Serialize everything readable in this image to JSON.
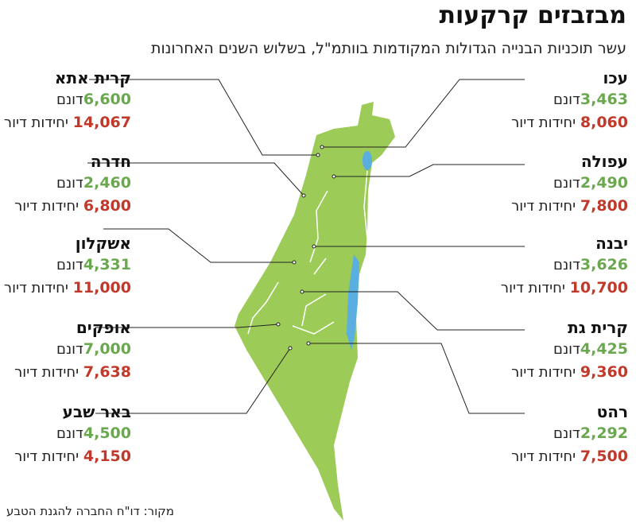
{
  "title": "מבזבזים קרקעות",
  "subtitle": "עשר תוכניות הבנייה הגדולות המקודמות בוותמ\"ל, בשלוש השנים האחרונות",
  "area_unit": "דונם",
  "housing_unit": "יחידות דיור",
  "source": "מקור: דו\"ח החברה להגנת הטבע",
  "right_cities": [
    {
      "name": "עכו",
      "dunam": "3,463",
      "units": "8,060"
    },
    {
      "name": "עפולה",
      "dunam": "2,490",
      "units": "7,800"
    },
    {
      "name": "יבנה",
      "dunam": "3,626",
      "units": "10,700"
    },
    {
      "name": "קרית גת",
      "dunam": "4,425",
      "units": "9,360"
    },
    {
      "name": "רהט",
      "dunam": "2,292",
      "units": "7,500"
    }
  ],
  "left_cities": [
    {
      "name": "קרית אתא",
      "dunam": "6,600",
      "units": "14,067"
    },
    {
      "name": "חדרה",
      "dunam": "2,460",
      "units": "6,800"
    },
    {
      "name": "אשקלון",
      "dunam": "4,331",
      "units": "11,000"
    },
    {
      "name": "אופקים",
      "dunam": "7,000",
      "units": "7,638"
    },
    {
      "name": "באר שבע",
      "dunam": "4,500",
      "units": "4,150"
    }
  ]
}
